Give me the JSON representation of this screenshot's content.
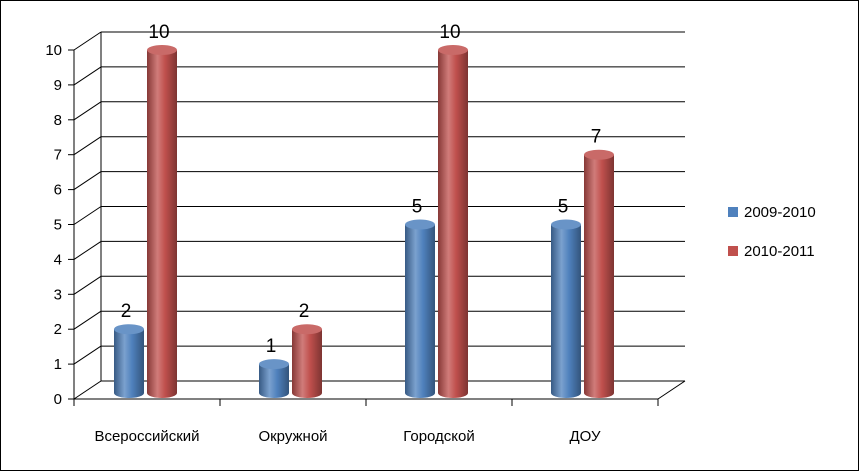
{
  "chart_data": {
    "type": "bar",
    "categories": [
      "Всероссийский",
      "Окружной",
      "Городской",
      "ДОУ"
    ],
    "series": [
      {
        "name": "2009-2010",
        "values": [
          2,
          1,
          5,
          5
        ],
        "color": "#4f81bd"
      },
      {
        "name": "2010-2011",
        "values": [
          10,
          2,
          10,
          7
        ],
        "color": "#c0504d"
      }
    ],
    "ylim": [
      0,
      10
    ],
    "yticks": [
      0,
      1,
      2,
      3,
      4,
      5,
      6,
      7,
      8,
      9,
      10
    ],
    "grid": true,
    "legend": "right",
    "style": "3d-cylinder"
  }
}
